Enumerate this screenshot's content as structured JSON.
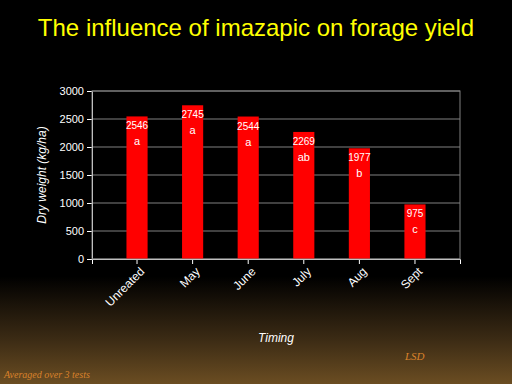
{
  "chart_data": {
    "type": "bar",
    "title": "The influence of imazapic on forage yield",
    "x_label": "Timing",
    "y_label": "Dry weight (kg/ha)",
    "categories": [
      "Unreated",
      "May",
      "June",
      "July",
      "Aug",
      "Sept"
    ],
    "values": [
      2546,
      2745,
      2544,
      2269,
      1977,
      975
    ],
    "annotations": [
      "a",
      "a",
      "a",
      "ab",
      "b",
      "c"
    ],
    "color": "#ff0000",
    "ylim": [
      0,
      3000
    ],
    "yticks": [
      0,
      500,
      1000,
      1500,
      2000,
      2500,
      3000
    ],
    "grid": true,
    "data_labels": true,
    "footnote": "Averaged over 3 tests",
    "note": "LSD"
  }
}
